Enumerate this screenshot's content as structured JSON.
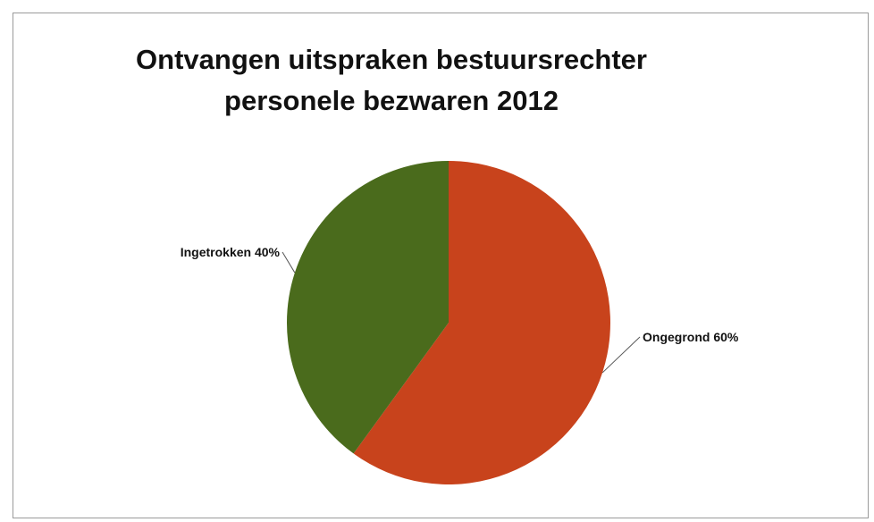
{
  "chart_data": {
    "type": "pie",
    "title_lines": [
      "Ontvangen uitspraken bestuursrechter",
      "personele bezwaren 2012"
    ],
    "slices": [
      {
        "label": "Ongegrond 60%",
        "value": 60,
        "color": "#c8431c"
      },
      {
        "label": "Ingetrokken 40%",
        "value": 40,
        "color": "#4a6b1c"
      }
    ],
    "start_angle": "12 o'clock, clockwise",
    "legend": "none (data labels outside slices)"
  }
}
